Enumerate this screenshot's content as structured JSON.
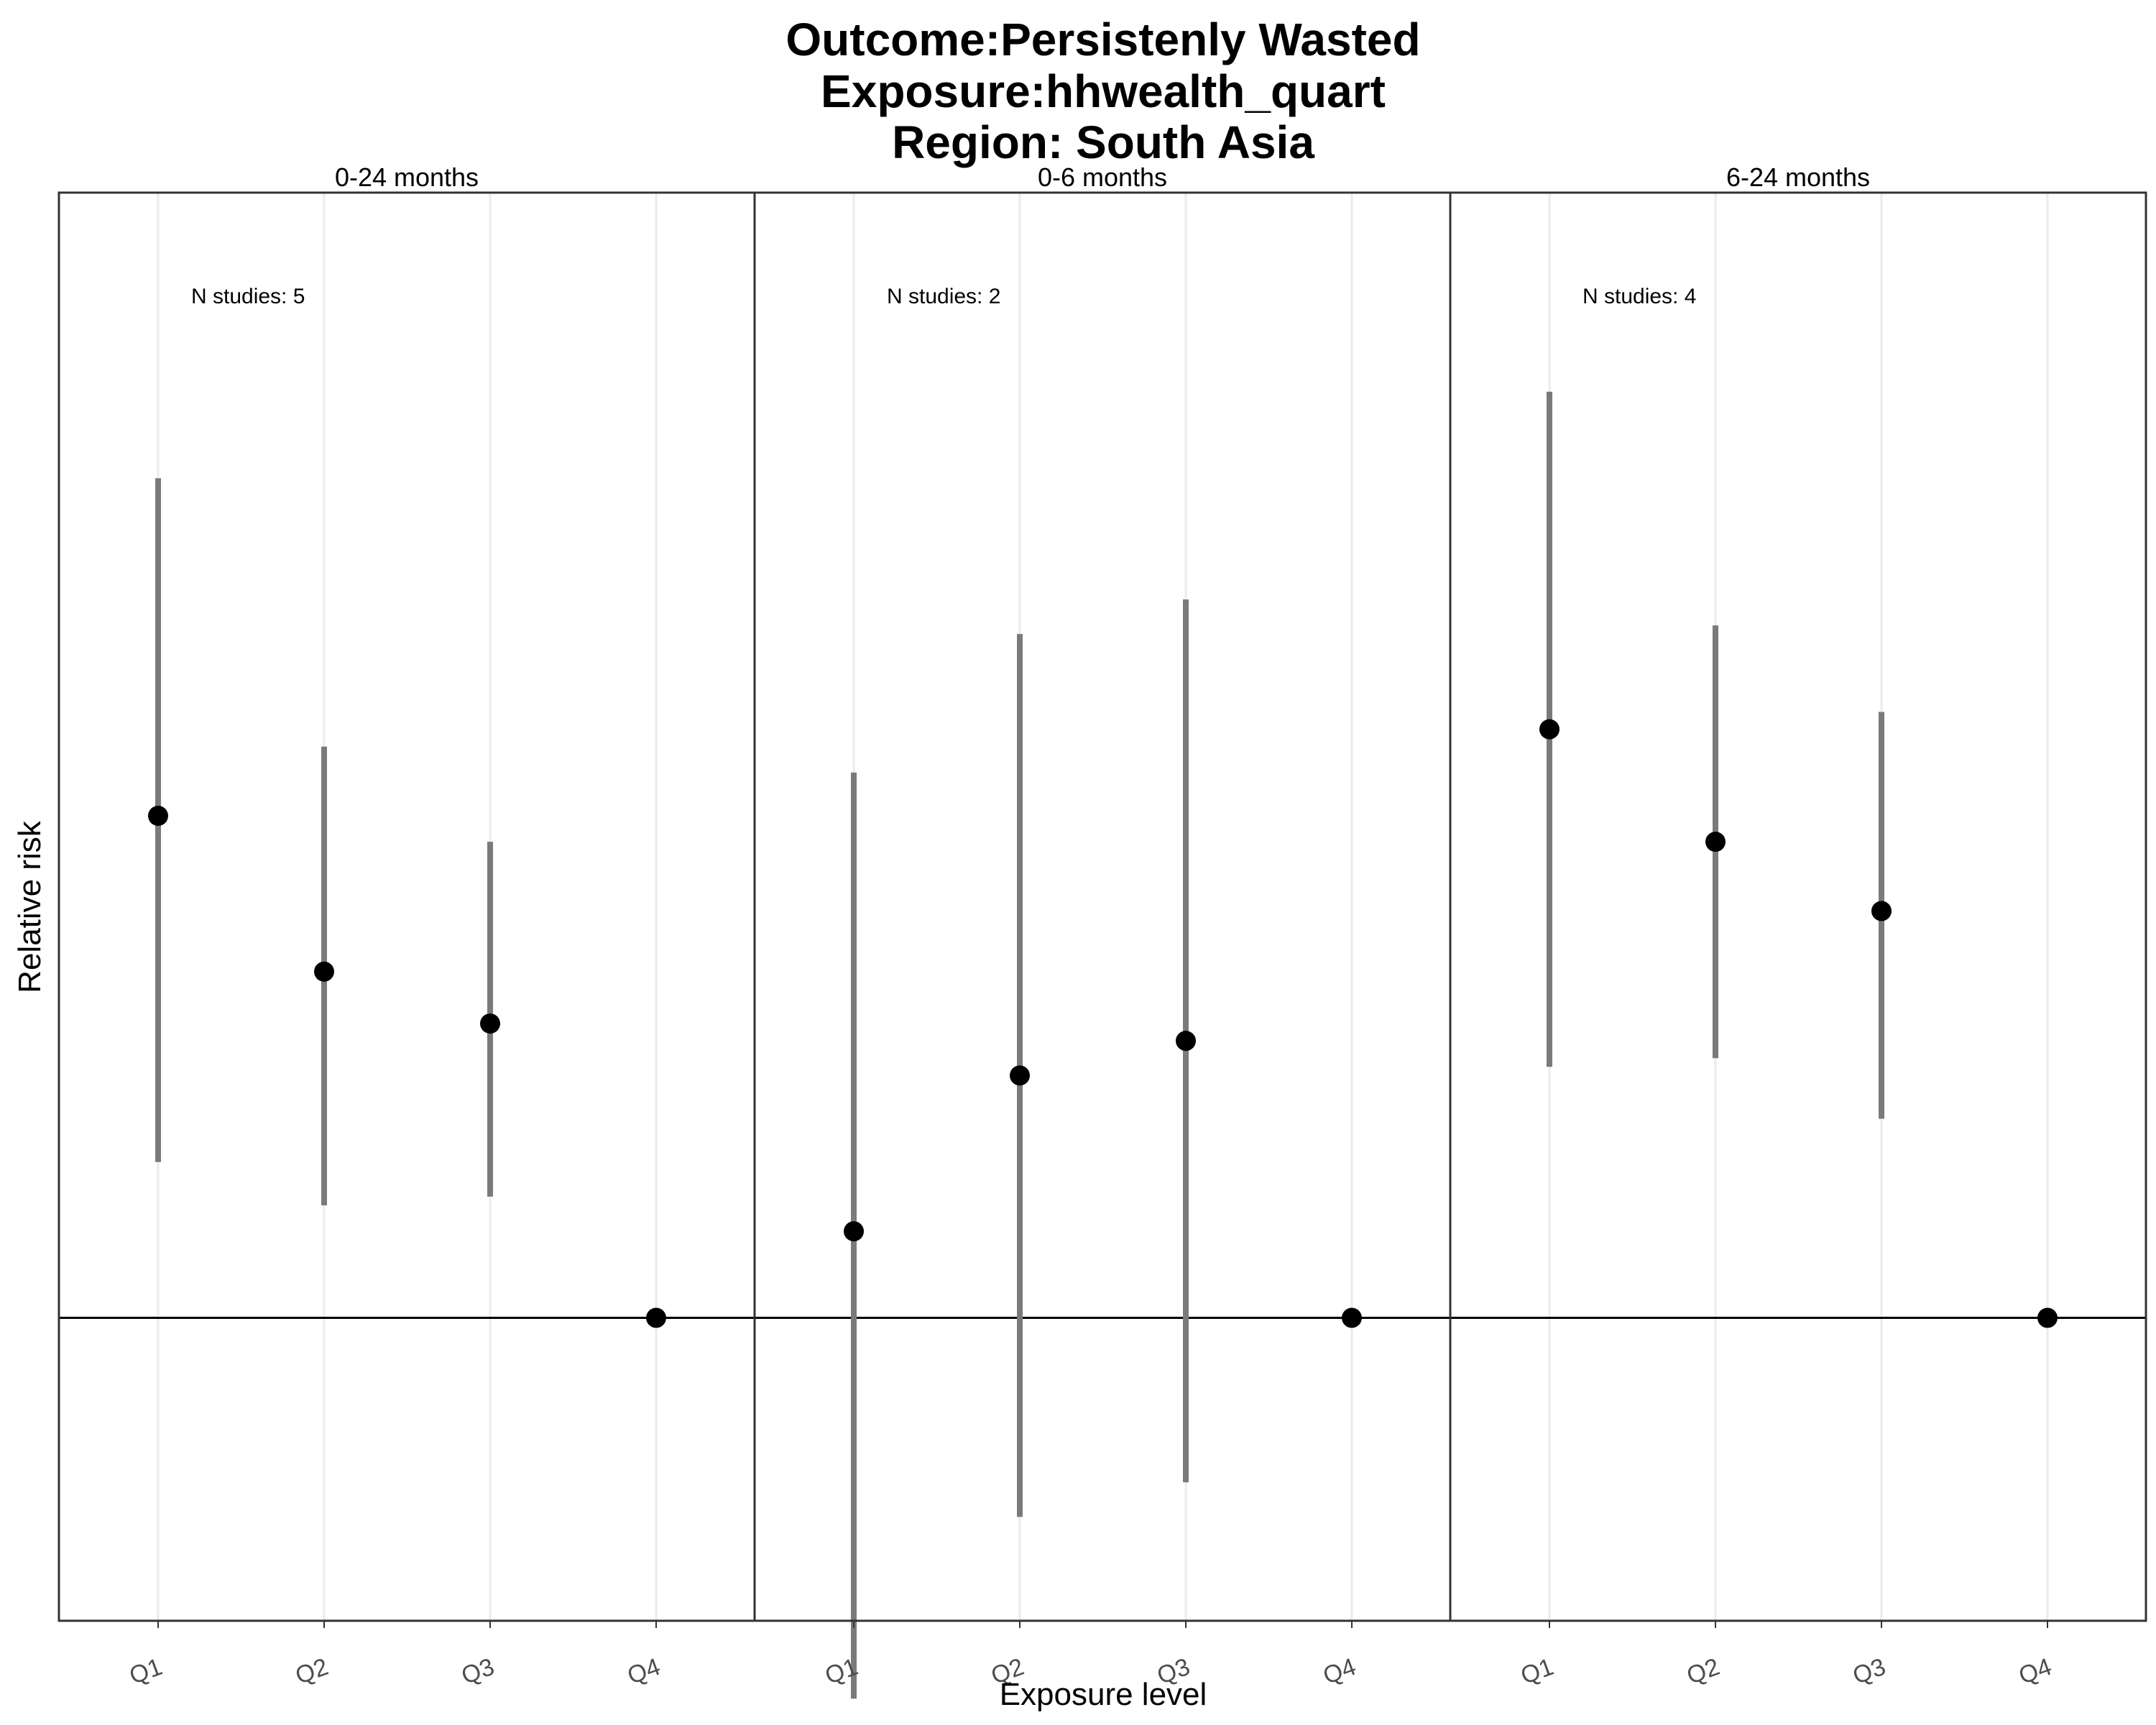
{
  "chart_data": {
    "type": "scatter",
    "title_lines": [
      "Outcome:Persistenly Wasted",
      "Exposure:hhwealth_quart",
      "Region: South Asia"
    ],
    "xlabel": "Exposure level",
    "ylabel": "Relative risk",
    "categories": [
      "Q1",
      "Q2",
      "Q3",
      "Q4"
    ],
    "reference_line": 1.0,
    "ylim": [
      0.65,
      2.3
    ],
    "log_scale": false,
    "y_tick_labels_shown": false,
    "grid": "vertical",
    "panels": [
      {
        "label": "0-24 months",
        "annotation": "N studies: 5",
        "points": [
          {
            "x": "Q1",
            "y": 1.58,
            "lo": 1.18,
            "hi": 1.97
          },
          {
            "x": "Q2",
            "y": 1.4,
            "lo": 1.13,
            "hi": 1.66
          },
          {
            "x": "Q3",
            "y": 1.34,
            "lo": 1.14,
            "hi": 1.55
          },
          {
            "x": "Q4",
            "y": 1.0,
            "lo": null,
            "hi": null
          }
        ]
      },
      {
        "label": "0-6 months",
        "annotation": "N studies: 2",
        "points": [
          {
            "x": "Q1",
            "y": 1.1,
            "lo": 0.56,
            "hi": 1.63
          },
          {
            "x": "Q2",
            "y": 1.28,
            "lo": 0.77,
            "hi": 1.79
          },
          {
            "x": "Q3",
            "y": 1.32,
            "lo": 0.81,
            "hi": 1.83
          },
          {
            "x": "Q4",
            "y": 1.0,
            "lo": null,
            "hi": null
          }
        ]
      },
      {
        "label": "6-24 months",
        "annotation": "N studies: 4",
        "points": [
          {
            "x": "Q1",
            "y": 1.68,
            "lo": 1.29,
            "hi": 2.07
          },
          {
            "x": "Q2",
            "y": 1.55,
            "lo": 1.3,
            "hi": 1.8
          },
          {
            "x": "Q3",
            "y": 1.47,
            "lo": 1.23,
            "hi": 1.7
          },
          {
            "x": "Q4",
            "y": 1.0,
            "lo": null,
            "hi": null
          }
        ]
      }
    ]
  },
  "colors": {
    "point": "#000000",
    "ci_line": "#7a7a7a",
    "grid": "#ebebeb",
    "panel_border": "#333333",
    "reference_line": "#000000",
    "tick_text": "#4d4d4d"
  }
}
